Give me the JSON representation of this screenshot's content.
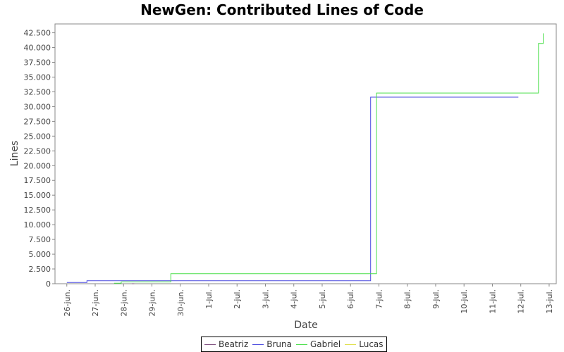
{
  "chart_data": {
    "type": "line",
    "title": "NewGen: Contributed Lines of Code",
    "xlabel": "Date",
    "ylabel": "Lines",
    "ylim": [
      0,
      44000
    ],
    "xlim": [
      "2019-06-25T14:00",
      "2019-07-13T06:00"
    ],
    "y_ticks": [
      "0",
      "2.500",
      "5.000",
      "7.500",
      "10.000",
      "12.500",
      "15.000",
      "17.500",
      "20.000",
      "22.500",
      "25.000",
      "27.500",
      "30.000",
      "32.500",
      "35.000",
      "37.500",
      "40.000",
      "42.500"
    ],
    "x_ticks": [
      "26-jun.",
      "27-jun.",
      "28-jun.",
      "29-jun.",
      "30-jun.",
      "1-jul.",
      "2-jul.",
      "3-jul.",
      "4-jul.",
      "5-jul.",
      "6-jul.",
      "7-jul.",
      "8-jul.",
      "9-jul.",
      "10-jul.",
      "11-jul.",
      "12-jul.",
      "13-jul."
    ],
    "legend_position": "bottom",
    "grid": false,
    "series": [
      {
        "name": "Beatriz",
        "color": "#7f4f7f",
        "points": [
          [
            "2019-06-28T07:00",
            0
          ],
          [
            "2019-06-28T09:00",
            0
          ]
        ]
      },
      {
        "name": "Bruna",
        "color": "#4a4adf",
        "points": [
          [
            "2019-06-26T00:00",
            200
          ],
          [
            "2019-06-26T17:00",
            200
          ],
          [
            "2019-06-26T17:00",
            500
          ],
          [
            "2019-07-06T17:00",
            500
          ],
          [
            "2019-07-06T17:00",
            31600
          ],
          [
            "2019-07-11T22:00",
            31600
          ]
        ]
      },
      {
        "name": "Gabriel",
        "color": "#4adf4a",
        "points": [
          [
            "2019-06-27T16:00",
            100
          ],
          [
            "2019-06-27T22:00",
            100
          ],
          [
            "2019-06-27T22:00",
            300
          ],
          [
            "2019-06-29T16:00",
            300
          ],
          [
            "2019-06-29T16:00",
            1700
          ],
          [
            "2019-07-06T22:00",
            1700
          ],
          [
            "2019-07-06T22:00",
            32300
          ],
          [
            "2019-07-12T15:00",
            32300
          ],
          [
            "2019-07-12T15:00",
            40700
          ],
          [
            "2019-07-12T19:00",
            40700
          ],
          [
            "2019-07-12T19:00",
            42400
          ]
        ]
      },
      {
        "name": "Lucas",
        "color": "#dfdf4a",
        "points": []
      }
    ]
  }
}
